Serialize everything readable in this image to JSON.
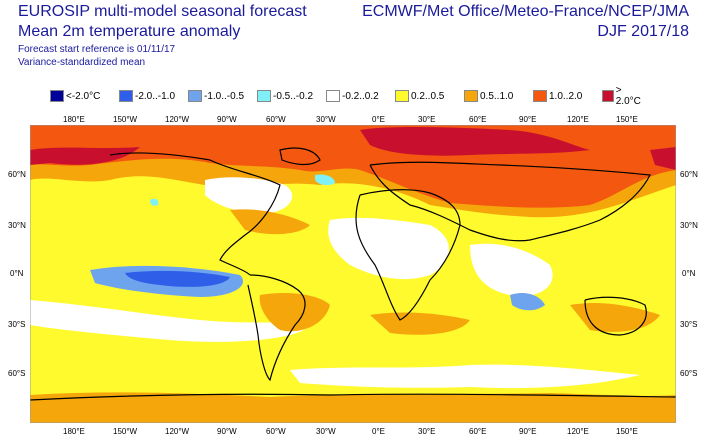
{
  "header": {
    "title_left_1": "EUROSIP multi-model seasonal forecast",
    "title_left_2": "Mean 2m temperature anomaly",
    "subtitle_1": "Forecast start reference is 01/11/17",
    "subtitle_2": "Variance-standardized mean",
    "title_right_1": "ECMWF/Met Office/Meteo-France/NCEP/JMA",
    "title_right_2": "DJF 2017/18"
  },
  "legend": [
    {
      "label": "<-2.0°C",
      "color": "#00009a"
    },
    {
      "label": "-2.0..-1.0",
      "color": "#2f5fe8"
    },
    {
      "label": "-1.0..-0.5",
      "color": "#6ea4ee"
    },
    {
      "label": "-0.5..-0.2",
      "color": "#7ff0f5"
    },
    {
      "label": "-0.2..0.2",
      "color": "#ffffff"
    },
    {
      "label": "0.2..0.5",
      "color": "#fffa2e"
    },
    {
      "label": "0.5..1.0",
      "color": "#f5a60a"
    },
    {
      "label": "1.0..2.0",
      "color": "#f35710"
    },
    {
      "label": "> 2.0°C",
      "color": "#c8102e"
    }
  ],
  "axes": {
    "lon_labels": [
      "180°E",
      "150°W",
      "120°W",
      "90°W",
      "60°W",
      "30°W",
      "0°E",
      "30°E",
      "60°E",
      "90°E",
      "120°E",
      "150°E"
    ],
    "lat_labels": [
      "60°N",
      "30°N",
      "0°N",
      "30°S",
      "60°S"
    ]
  }
}
